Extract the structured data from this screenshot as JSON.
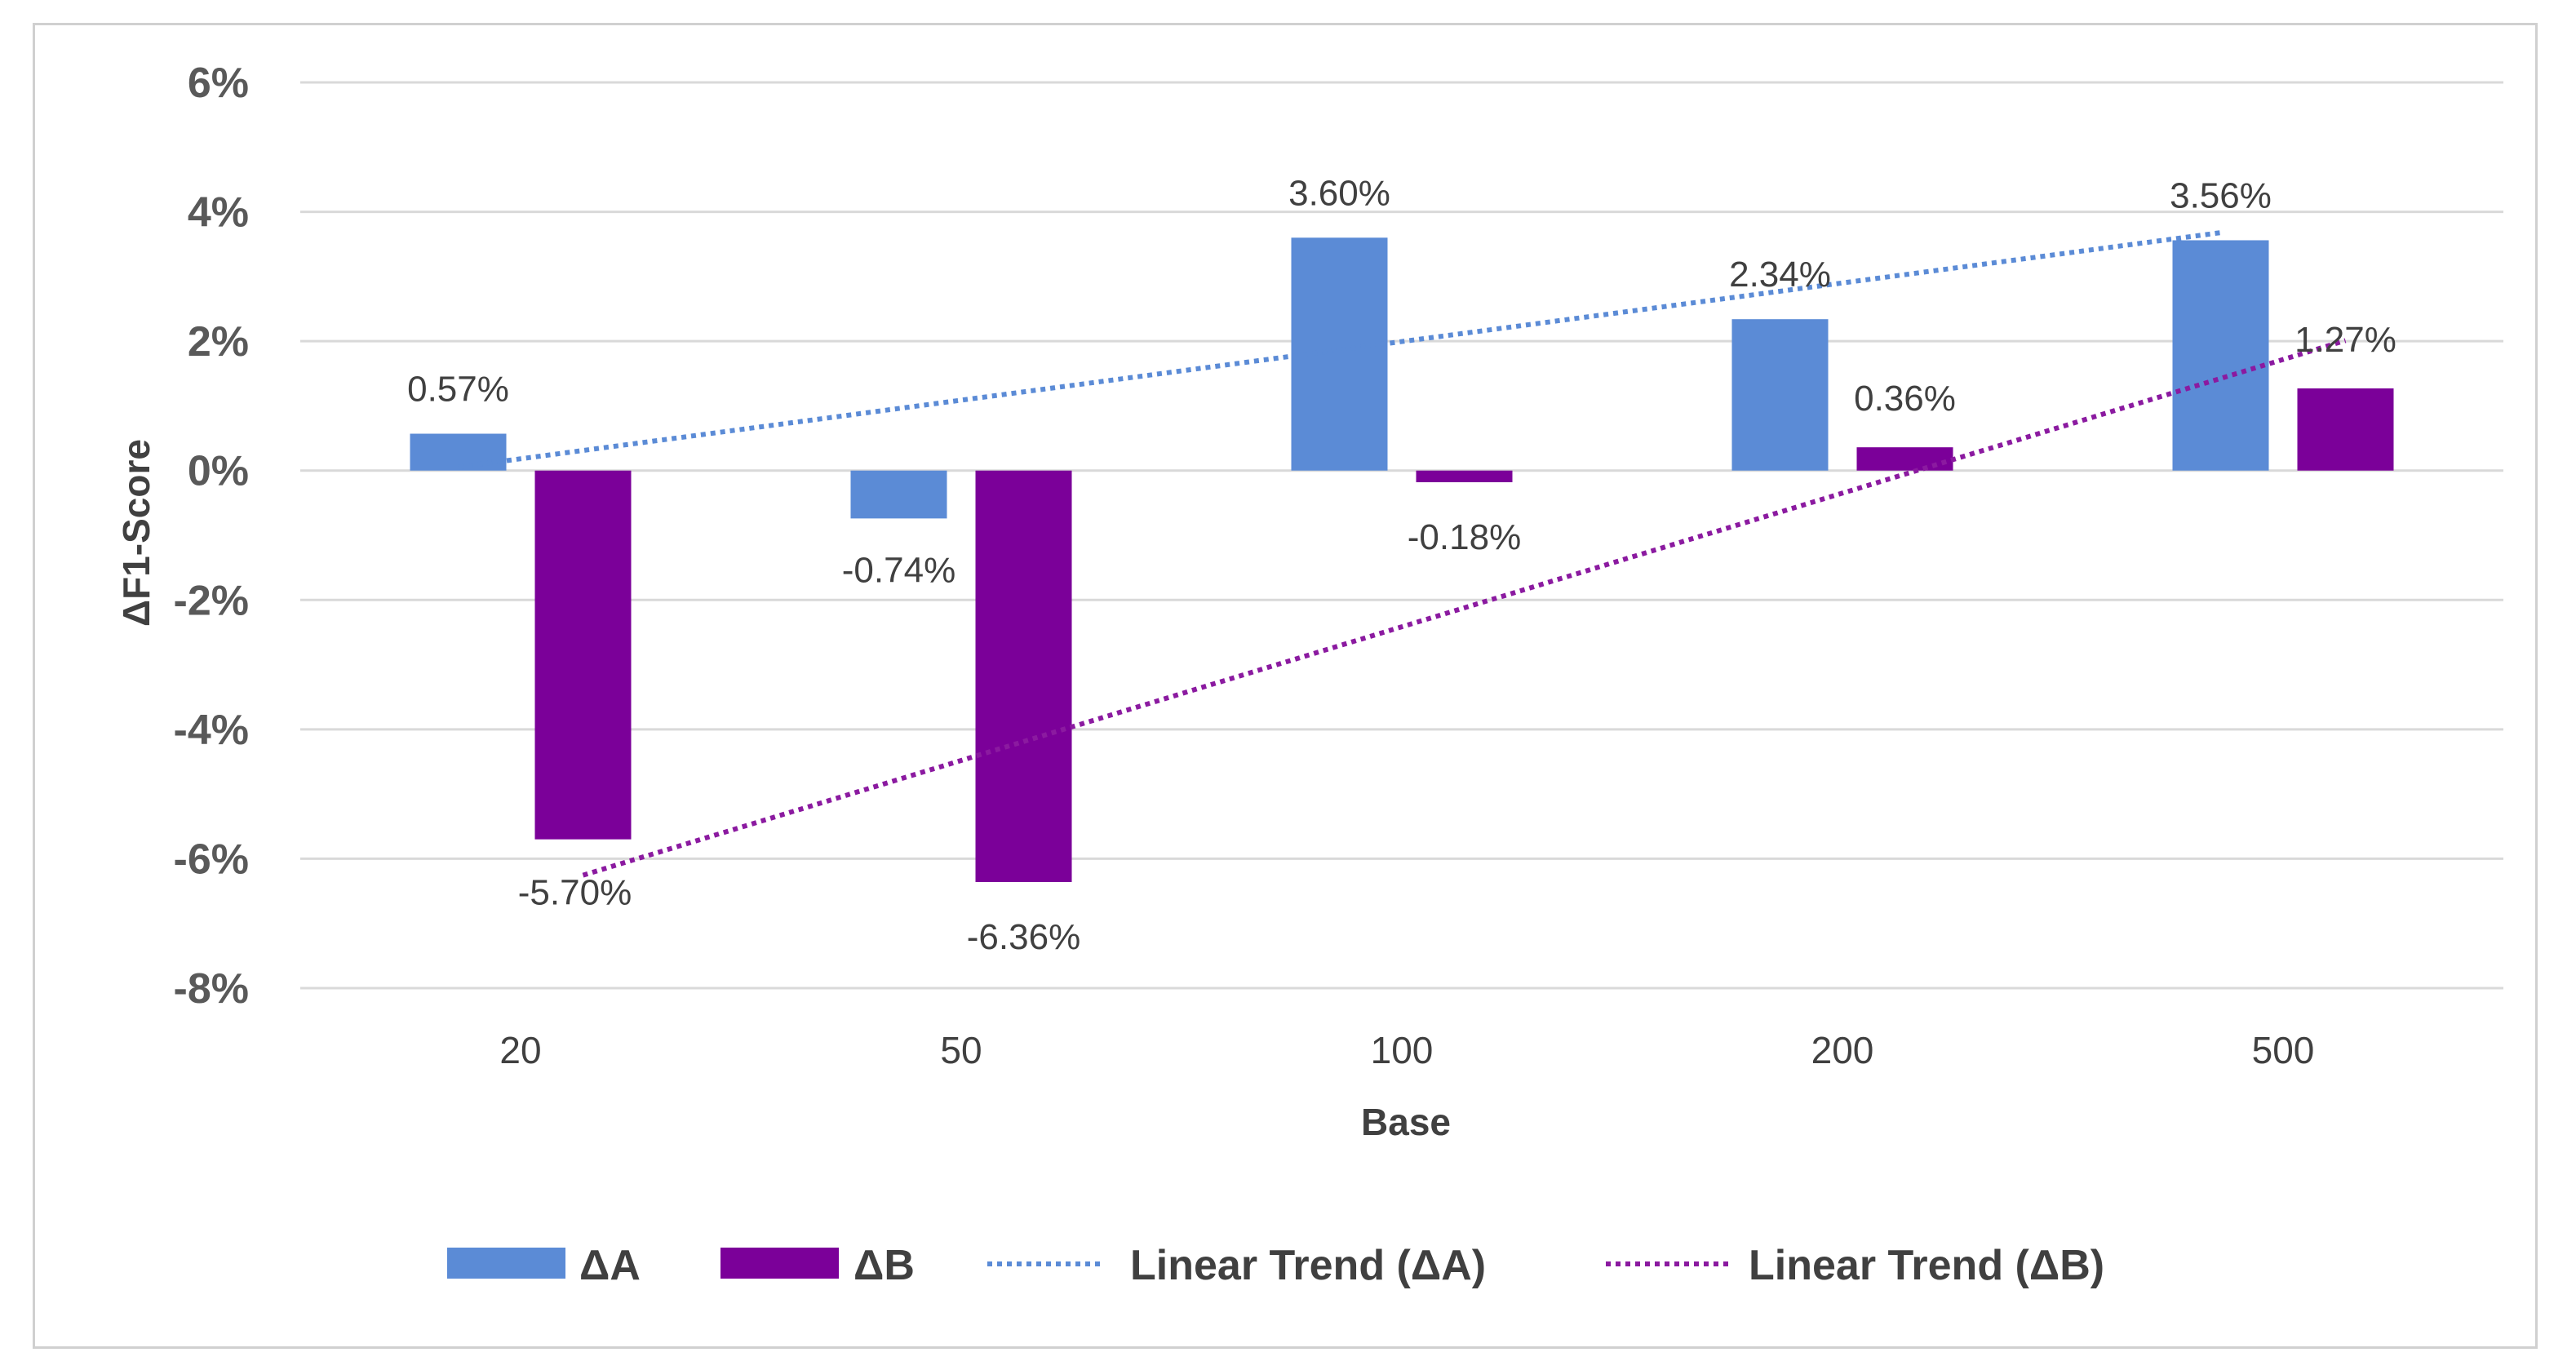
{
  "chart_data": {
    "type": "bar",
    "title": "",
    "xlabel": "Base",
    "ylabel": "ΔF1-Score",
    "categories": [
      "20",
      "50",
      "100",
      "200",
      "500"
    ],
    "ylim": [
      -8,
      6
    ],
    "yticks": [
      6,
      4,
      2,
      0,
      -2,
      -4,
      -6,
      -8
    ],
    "ytick_labels": [
      "6%",
      "4%",
      "2%",
      "0%",
      "-2%",
      "-4%",
      "-6%",
      "-8%"
    ],
    "grid": true,
    "legend_position": "bottom",
    "series": [
      {
        "name": "ΔA",
        "values": [
          0.57,
          -0.74,
          3.6,
          2.34,
          3.56
        ],
        "labels": [
          "0.57%",
          "-0.74%",
          "3.60%",
          "2.34%",
          "3.56%"
        ],
        "color": "#5b8bd6"
      },
      {
        "name": "ΔB",
        "values": [
          -5.7,
          -6.36,
          -0.18,
          0.36,
          1.27
        ],
        "labels": [
          "-5.70%",
          "-6.36%",
          "-0.18%",
          "0.36%",
          "1.27%"
        ],
        "color": "#7b0099"
      }
    ],
    "trendlines": [
      {
        "name": "Linear Trend (ΔA)",
        "series": "ΔA",
        "color": "#5b8bd6",
        "style": "dotted"
      },
      {
        "name": "Linear Trend (ΔB)",
        "series": "ΔB",
        "color": "#8b1aa0",
        "style": "dotted"
      }
    ]
  }
}
